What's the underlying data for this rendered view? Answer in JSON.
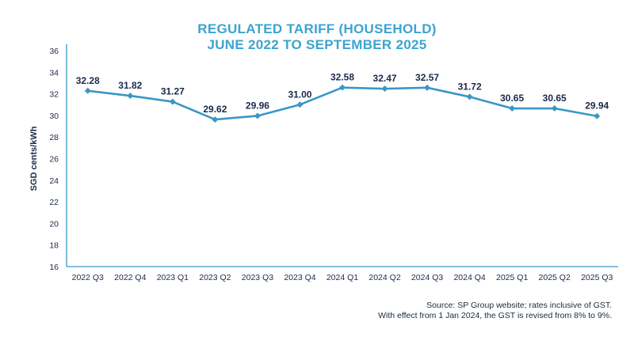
{
  "colors": {
    "title": "#3ba4d0",
    "line": "#3a97c6",
    "axis": "#3a97c6",
    "label": "#1b2a4a",
    "tick": "#1b2a4a"
  },
  "chart_data": {
    "type": "line",
    "title": "REGULATED TARIFF (HOUSEHOLD)",
    "subtitle": "JUNE 2022 TO SEPTEMBER 2025",
    "xlabel": "",
    "ylabel": "SGD cents/kWh",
    "ylim": [
      16,
      36
    ],
    "yticks": [
      16,
      18,
      20,
      22,
      24,
      26,
      28,
      30,
      32,
      34,
      36
    ],
    "grid": false,
    "categories": [
      "2022 Q3",
      "2022 Q4",
      "2023 Q1",
      "2023 Q2",
      "2023 Q3",
      "2023 Q4",
      "2024 Q1",
      "2024 Q2",
      "2024 Q3",
      "2024 Q4",
      "2025 Q1",
      "2025 Q2",
      "2025 Q3"
    ],
    "series": [
      {
        "values": [
          32.28,
          31.82,
          31.27,
          29.62,
          29.96,
          31.0,
          32.58,
          32.47,
          32.57,
          31.72,
          30.65,
          30.65,
          29.94
        ],
        "labels": [
          "32.28",
          "31.82",
          "31.27",
          "29.62",
          "29.96",
          "31.00",
          "32.58",
          "32.47",
          "32.57",
          "31.72",
          "30.65",
          "30.65",
          "29.94"
        ]
      }
    ]
  },
  "notes": {
    "source_line1": "Source: SP Group website; rates inclusive of GST.",
    "source_line2": "With effect from 1 Jan 2024, the GST is revised from 8% to 9%."
  }
}
